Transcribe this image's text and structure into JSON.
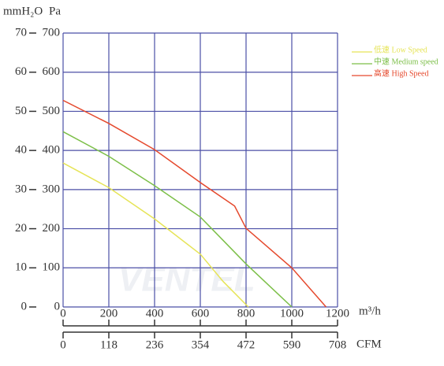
{
  "chart_data": {
    "type": "line",
    "y_label": "Pa",
    "y2_label": "mmH₂O",
    "x_label": "m³/h",
    "x2_label": "CFM",
    "watermark": "VENTEL",
    "xlim": [
      0,
      1200
    ],
    "xticks": [
      0,
      200,
      400,
      600,
      800,
      1000,
      1200
    ],
    "x2lim": [
      0,
      708
    ],
    "x2ticks": [
      0,
      118,
      236,
      354,
      472,
      590,
      708
    ],
    "ylim": [
      0,
      700
    ],
    "yticks": [
      0,
      100,
      200,
      300,
      400,
      500,
      600,
      700
    ],
    "y2lim": [
      0,
      70
    ],
    "y2ticks": [
      0,
      10,
      20,
      30,
      40,
      50,
      60,
      70
    ],
    "grid": true,
    "grid_color": "#4b4fa6",
    "legend": "upper right",
    "series": [
      {
        "name": "低速 Low Speed",
        "color": "#e6e457",
        "x": [
          0,
          200,
          400,
          600,
          700,
          810
        ],
        "values": [
          368,
          305,
          225,
          135,
          65,
          0
        ]
      },
      {
        "name": "中速 Medium speed",
        "color": "#7cbf48",
        "x": [
          0,
          200,
          400,
          600,
          650,
          800,
          1000
        ],
        "values": [
          448,
          385,
          310,
          230,
          200,
          110,
          0
        ]
      },
      {
        "name": "高速 High Speed",
        "color": "#e5492d",
        "x": [
          0,
          200,
          400,
          600,
          750,
          800,
          1000,
          1150
        ],
        "values": [
          528,
          469,
          402,
          318,
          258,
          201,
          100,
          0
        ]
      }
    ]
  }
}
